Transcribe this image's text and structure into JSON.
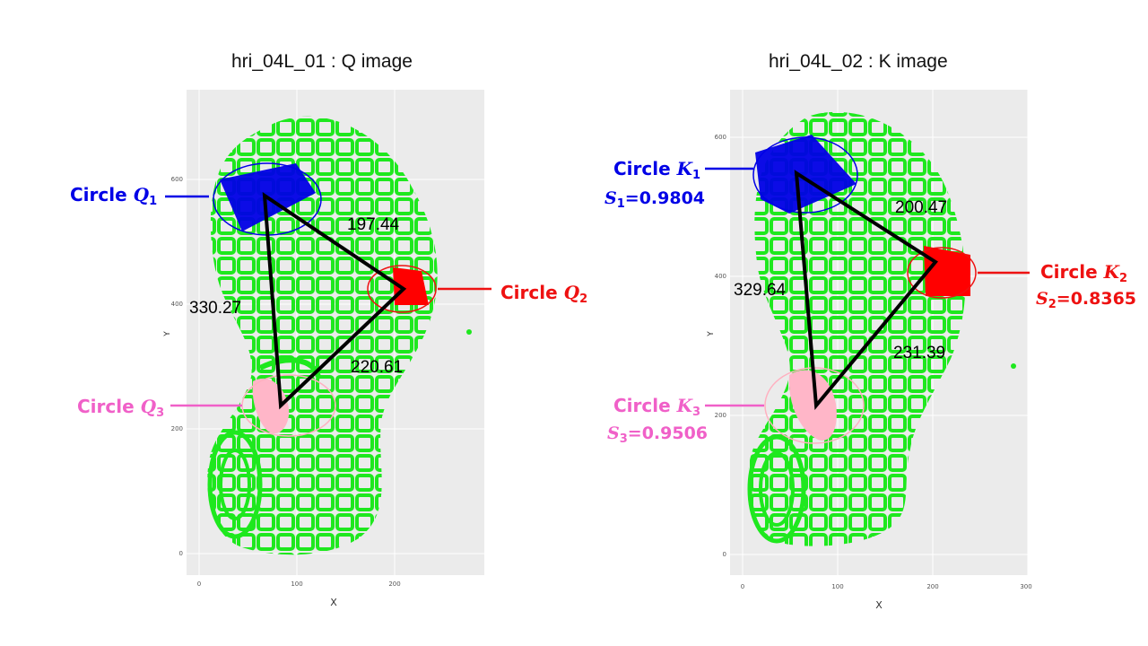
{
  "panels": [
    {
      "title": "hri_04L_01 : Q image",
      "x_label": "X",
      "y_label": "Y",
      "x_ticks": [
        "0",
        "100",
        "200"
      ],
      "y_ticks": [
        "0",
        "200",
        "400",
        "600"
      ],
      "circles": [
        {
          "word": "Circle",
          "letter": "Q",
          "index": "1",
          "color": "#0000e6"
        },
        {
          "word": "Circle",
          "letter": "Q",
          "index": "2",
          "color": "#ee1111"
        },
        {
          "word": "Circle",
          "letter": "Q",
          "index": "3",
          "color": "#f060c8"
        }
      ],
      "distances": [
        "197.44",
        "330.27",
        "220.61"
      ]
    },
    {
      "title": "hri_04L_02 : K image",
      "x_label": "X",
      "y_label": "Y",
      "x_ticks": [
        "0",
        "100",
        "200",
        "300"
      ],
      "y_ticks": [
        "0",
        "200",
        "400",
        "600"
      ],
      "circles": [
        {
          "word": "Circle",
          "letter": "K",
          "index": "1",
          "color": "#0000e6",
          "score_letter": "S",
          "score_index": "1",
          "score_value": "=0.9804"
        },
        {
          "word": "Circle",
          "letter": "K",
          "index": "2",
          "color": "#ee1111",
          "score_letter": "S",
          "score_index": "2",
          "score_value": "=0.8365"
        },
        {
          "word": "Circle",
          "letter": "K",
          "index": "3",
          "color": "#f060c8",
          "score_letter": "S",
          "score_index": "3",
          "score_value": "=0.9506"
        }
      ],
      "distances": [
        "200.47",
        "329.64",
        "231.39"
      ]
    }
  ]
}
